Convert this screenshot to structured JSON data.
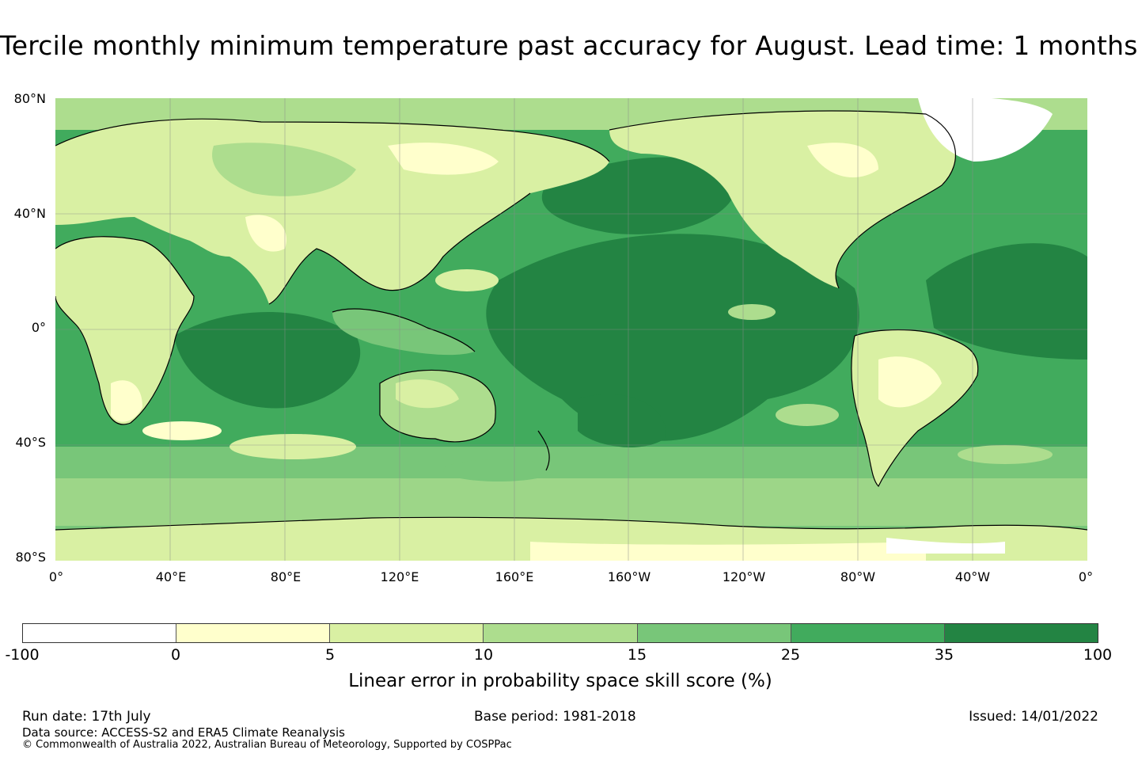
{
  "title": "Tercile monthly minimum temperature past accuracy for August. Lead time: 1 months",
  "map": {
    "latitude_labels": [
      "80°N",
      "40°N",
      "0°",
      "40°S",
      "80°S"
    ],
    "longitude_labels": [
      "0°",
      "40°E",
      "80°E",
      "120°E",
      "160°E",
      "160°W",
      "120°W",
      "80°W",
      "40°W",
      "0°"
    ],
    "land_color": "#ffffcc",
    "ocean_color": "#2a8a49",
    "gridline_color": "#8a8a8a",
    "coastline_color": "#000000"
  },
  "colorbar": {
    "label": "Linear error in probability space skill score (%)",
    "ticks": [
      "-100",
      "0",
      "5",
      "10",
      "15",
      "25",
      "35",
      "100"
    ],
    "colors": [
      "#ffffff",
      "#ffffcc",
      "#d9f0a3",
      "#addd8e",
      "#78c679",
      "#41ab5d",
      "#238443"
    ]
  },
  "footer": {
    "run_date": "Run date: 17th July",
    "base_period": "Base period: 1981-2018",
    "issued": "Issued: 14/01/2022",
    "data_source": "Data source: ACCESS-S2 and ERA5 Climate Reanalysis",
    "copyright": "© Commonwealth of Australia 2022, Australian Bureau of Meteorology, Supported by COSPPac"
  }
}
